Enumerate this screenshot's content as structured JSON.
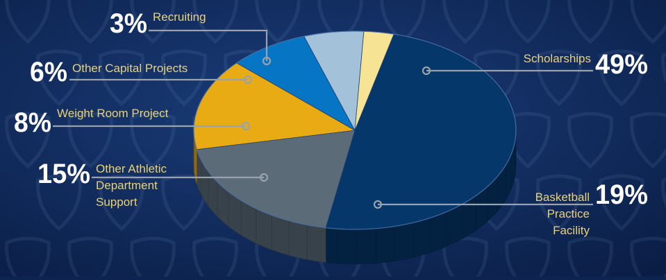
{
  "chart_data": {
    "type": "pie",
    "title": "",
    "slices": [
      {
        "label_lines": [
          "Scholarships"
        ],
        "percent_label": "49%",
        "value": 49,
        "color": "#05376b"
      },
      {
        "label_lines": [
          "Basketball",
          "Practice",
          "Facility"
        ],
        "percent_label": "19%",
        "value": 19,
        "color": "#5b6b78"
      },
      {
        "label_lines": [
          "Other Athletic",
          "Department",
          "Support"
        ],
        "percent_label": "15%",
        "value": 15,
        "color": "#e8ab14"
      },
      {
        "label_lines": [
          "Weight Room Project"
        ],
        "percent_label": "8%",
        "value": 8,
        "color": "#0675c4"
      },
      {
        "label_lines": [
          "Other Capital Projects"
        ],
        "percent_label": "6%",
        "value": 6,
        "color": "#a3c2da"
      },
      {
        "label_lines": [
          "Recruiting"
        ],
        "percent_label": "3%",
        "value": 3,
        "color": "#f6e394"
      }
    ]
  },
  "colors": {
    "background": "#0d2350",
    "label_text": "#e8d27a",
    "percent_text": "#ffffff",
    "leader_line": "#9aa3ad"
  }
}
